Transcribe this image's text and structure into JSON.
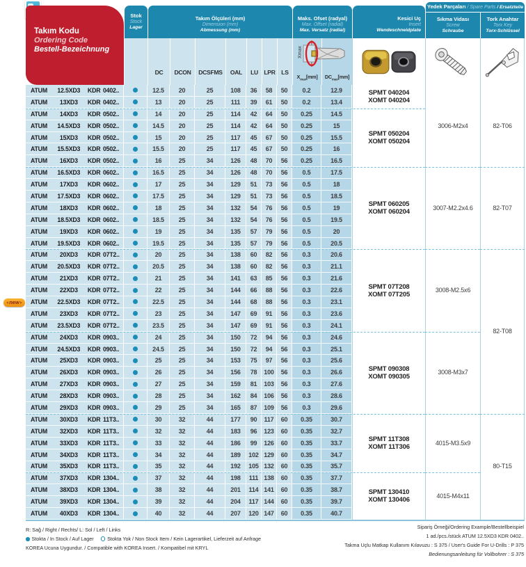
{
  "colors": {
    "teal": "#1e87ae",
    "red": "#be1e2d",
    "row_blue": "#cde4ef",
    "offset_blue": "#b5d7e7",
    "badge_orange": "#ee8f0e",
    "stock_dot": "#1b8db6",
    "group_dash": "#7cc0dc"
  },
  "header": {
    "ordering_code": {
      "tr": "Takım Kodu",
      "en": "Ordering Code",
      "de": "Bestell-Bezeichnung"
    },
    "stock": {
      "tr": "Stok",
      "en": "Stock",
      "de": "Lager"
    },
    "dimensions": {
      "tr": "Takım Ölçüleri (mm)",
      "en": "Dimension (mm)",
      "de": "Abmessung (mm)"
    },
    "offset": {
      "tr": "Maks. Ofset (radyal)",
      "en": "Max. Offset (radial)",
      "de": "Max. Versatz (radial)"
    },
    "insert": {
      "tr": "Kesici Uç",
      "en": "Insert",
      "de": "Wendeschneidplate"
    },
    "spare_parts": {
      "tr": "Yedek Parçaları",
      "sep": " / ",
      "en": "Spare Parts",
      "de": "Ersatzteile"
    },
    "screw": {
      "tr": "Sıkma Vidası",
      "en": "Screw",
      "de": "Schraube"
    },
    "torx": {
      "tr": "Tork Anahtar",
      "en": "Torx Key",
      "de": "Torx-Schlüssel"
    },
    "offset_axis_label": "Xmax",
    "offset_cols": [
      {
        "main": "X",
        "sub": "max",
        "unit": "[mm]"
      },
      {
        "main": "DC",
        "sub": "max",
        "unit": "[mm]"
      }
    ]
  },
  "table": {
    "dim_columns": [
      "DC",
      "DCON",
      "DCSFMS",
      "OAL",
      "LU",
      "LPR",
      "LS"
    ],
    "rows": [
      {
        "code": [
          "ATUM",
          "12.5XD3",
          "KDR",
          "0402.."
        ],
        "stock": "in",
        "dims": [
          "12.5",
          "20",
          "25",
          "108",
          "36",
          "58",
          "50"
        ],
        "xmax": "0.2",
        "dcmax": "12.9"
      },
      {
        "code": [
          "ATUM",
          "13XD3",
          "KDR",
          "0402.."
        ],
        "stock": "in",
        "dims": [
          "13",
          "20",
          "25",
          "111",
          "39",
          "61",
          "50"
        ],
        "xmax": "0.2",
        "dcmax": "13.4"
      },
      {
        "code": [
          "ATUM",
          "14XD3",
          "KDR",
          "0502.."
        ],
        "stock": "in",
        "dims": [
          "14",
          "20",
          "25",
          "114",
          "42",
          "64",
          "50"
        ],
        "xmax": "0.25",
        "dcmax": "14.5"
      },
      {
        "code": [
          "ATUM",
          "14.5XD3",
          "KDR",
          "0502.."
        ],
        "stock": "in",
        "dims": [
          "14.5",
          "20",
          "25",
          "114",
          "42",
          "64",
          "50"
        ],
        "xmax": "0.25",
        "dcmax": "15"
      },
      {
        "code": [
          "ATUM",
          "15XD3",
          "KDR",
          "0502.."
        ],
        "stock": "in",
        "dims": [
          "15",
          "20",
          "25",
          "117",
          "45",
          "67",
          "50"
        ],
        "xmax": "0.25",
        "dcmax": "15.5"
      },
      {
        "code": [
          "ATUM",
          "15.5XD3",
          "KDR",
          "0502.."
        ],
        "stock": "in",
        "dims": [
          "15.5",
          "20",
          "25",
          "117",
          "45",
          "67",
          "50"
        ],
        "xmax": "0.25",
        "dcmax": "16"
      },
      {
        "code": [
          "ATUM",
          "16XD3",
          "KDR",
          "0502.."
        ],
        "stock": "in",
        "dims": [
          "16",
          "25",
          "34",
          "126",
          "48",
          "70",
          "56"
        ],
        "xmax": "0.25",
        "dcmax": "16.5"
      },
      {
        "code": [
          "ATUM",
          "16.5XD3",
          "KDR",
          "0602.."
        ],
        "stock": "in",
        "dims": [
          "16.5",
          "25",
          "34",
          "126",
          "48",
          "70",
          "56"
        ],
        "xmax": "0.5",
        "dcmax": "17.5"
      },
      {
        "code": [
          "ATUM",
          "17XD3",
          "KDR",
          "0602.."
        ],
        "stock": "in",
        "dims": [
          "17",
          "25",
          "34",
          "129",
          "51",
          "73",
          "56"
        ],
        "xmax": "0.5",
        "dcmax": "18"
      },
      {
        "code": [
          "ATUM",
          "17.5XD3",
          "KDR",
          "0602.."
        ],
        "stock": "in",
        "dims": [
          "17.5",
          "25",
          "34",
          "129",
          "51",
          "73",
          "56"
        ],
        "xmax": "0.5",
        "dcmax": "18.5"
      },
      {
        "code": [
          "ATUM",
          "18XD3",
          "KDR",
          "0602.."
        ],
        "stock": "in",
        "dims": [
          "18",
          "25",
          "34",
          "132",
          "54",
          "76",
          "56"
        ],
        "xmax": "0.5",
        "dcmax": "19"
      },
      {
        "code": [
          "ATUM",
          "18.5XD3",
          "KDR",
          "0602.."
        ],
        "stock": "in",
        "dims": [
          "18.5",
          "25",
          "34",
          "132",
          "54",
          "76",
          "56"
        ],
        "xmax": "0.5",
        "dcmax": "19.5"
      },
      {
        "code": [
          "ATUM",
          "19XD3",
          "KDR",
          "0602.."
        ],
        "stock": "in",
        "dims": [
          "19",
          "25",
          "34",
          "135",
          "57",
          "79",
          "56"
        ],
        "xmax": "0.5",
        "dcmax": "20"
      },
      {
        "code": [
          "ATUM",
          "19.5XD3",
          "KDR",
          "0602.."
        ],
        "stock": "in",
        "dims": [
          "19.5",
          "25",
          "34",
          "135",
          "57",
          "79",
          "56"
        ],
        "xmax": "0.5",
        "dcmax": "20.5"
      },
      {
        "code": [
          "ATUM",
          "20XD3",
          "KDR",
          "07T2.."
        ],
        "stock": "in",
        "dims": [
          "20",
          "25",
          "34",
          "138",
          "60",
          "82",
          "56"
        ],
        "xmax": "0.3",
        "dcmax": "20.6"
      },
      {
        "code": [
          "ATUM",
          "20.5XD3",
          "KDR",
          "07T2.."
        ],
        "stock": "in",
        "dims": [
          "20.5",
          "25",
          "34",
          "138",
          "60",
          "82",
          "56"
        ],
        "xmax": "0.3",
        "dcmax": "21.1"
      },
      {
        "code": [
          "ATUM",
          "21XD3",
          "KDR",
          "07T2.."
        ],
        "stock": "in",
        "dims": [
          "21",
          "25",
          "34",
          "141",
          "63",
          "85",
          "56"
        ],
        "xmax": "0.3",
        "dcmax": "21.6"
      },
      {
        "code": [
          "ATUM",
          "22XD3",
          "KDR",
          "07T2.."
        ],
        "stock": "in",
        "dims": [
          "22",
          "25",
          "34",
          "144",
          "66",
          "88",
          "56"
        ],
        "xmax": "0.3",
        "dcmax": "22.6"
      },
      {
        "code": [
          "ATUM",
          "22.5XD3",
          "KDR",
          "07T2.."
        ],
        "stock": "in",
        "dims": [
          "22.5",
          "25",
          "34",
          "144",
          "68",
          "88",
          "56"
        ],
        "xmax": "0.3",
        "dcmax": "23.1"
      },
      {
        "code": [
          "ATUM",
          "23XD3",
          "KDR",
          "07T2.."
        ],
        "stock": "in",
        "dims": [
          "23",
          "25",
          "34",
          "147",
          "69",
          "91",
          "56"
        ],
        "xmax": "0.3",
        "dcmax": "23.6"
      },
      {
        "code": [
          "ATUM",
          "23.5XD3",
          "KDR",
          "07T2.."
        ],
        "stock": "in",
        "dims": [
          "23.5",
          "25",
          "34",
          "147",
          "69",
          "91",
          "56"
        ],
        "xmax": "0.3",
        "dcmax": "24.1"
      },
      {
        "code": [
          "ATUM",
          "24XD3",
          "KDR",
          "0903.."
        ],
        "stock": "in",
        "dims": [
          "24",
          "25",
          "34",
          "150",
          "72",
          "94",
          "56"
        ],
        "xmax": "0.3",
        "dcmax": "24.6"
      },
      {
        "code": [
          "ATUM",
          "24.5XD3",
          "KDR",
          "0903.."
        ],
        "stock": "in",
        "dims": [
          "24.5",
          "25",
          "34",
          "150",
          "72",
          "94",
          "56"
        ],
        "xmax": "0.3",
        "dcmax": "25.1"
      },
      {
        "code": [
          "ATUM",
          "25XD3",
          "KDR",
          "0903.."
        ],
        "stock": "in",
        "dims": [
          "25",
          "25",
          "34",
          "153",
          "75",
          "97",
          "56"
        ],
        "xmax": "0.3",
        "dcmax": "25.6"
      },
      {
        "code": [
          "ATUM",
          "26XD3",
          "KDR",
          "0903.."
        ],
        "stock": "in",
        "dims": [
          "26",
          "25",
          "34",
          "156",
          "78",
          "100",
          "56"
        ],
        "xmax": "0.3",
        "dcmax": "26.6"
      },
      {
        "code": [
          "ATUM",
          "27XD3",
          "KDR",
          "0903.."
        ],
        "stock": "in",
        "dims": [
          "27",
          "25",
          "34",
          "159",
          "81",
          "103",
          "56"
        ],
        "xmax": "0.3",
        "dcmax": "27.6"
      },
      {
        "code": [
          "ATUM",
          "28XD3",
          "KDR",
          "0903.."
        ],
        "stock": "in",
        "dims": [
          "28",
          "25",
          "34",
          "162",
          "84",
          "106",
          "56"
        ],
        "xmax": "0.3",
        "dcmax": "28.6"
      },
      {
        "code": [
          "ATUM",
          "29XD3",
          "KDR",
          "0903.."
        ],
        "stock": "in",
        "dims": [
          "29",
          "25",
          "34",
          "165",
          "87",
          "109",
          "56"
        ],
        "xmax": "0.3",
        "dcmax": "29.6"
      },
      {
        "code": [
          "ATUM",
          "30XD3",
          "KDR",
          "11T3.."
        ],
        "stock": "in",
        "dims": [
          "30",
          "32",
          "44",
          "177",
          "90",
          "117",
          "60"
        ],
        "xmax": "0.35",
        "dcmax": "30.7"
      },
      {
        "code": [
          "ATUM",
          "32XD3",
          "KDR",
          "11T3.."
        ],
        "stock": "in",
        "dims": [
          "32",
          "32",
          "44",
          "183",
          "96",
          "123",
          "60"
        ],
        "xmax": "0.35",
        "dcmax": "32.7"
      },
      {
        "code": [
          "ATUM",
          "33XD3",
          "KDR",
          "11T3.."
        ],
        "stock": "in",
        "dims": [
          "33",
          "32",
          "44",
          "186",
          "99",
          "126",
          "60"
        ],
        "xmax": "0.35",
        "dcmax": "33.7"
      },
      {
        "code": [
          "ATUM",
          "34XD3",
          "KDR",
          "11T3.."
        ],
        "stock": "in",
        "dims": [
          "34",
          "32",
          "44",
          "189",
          "102",
          "129",
          "60"
        ],
        "xmax": "0.35",
        "dcmax": "34.7"
      },
      {
        "code": [
          "ATUM",
          "35XD3",
          "KDR",
          "11T3.."
        ],
        "stock": "in",
        "dims": [
          "35",
          "32",
          "44",
          "192",
          "105",
          "132",
          "60"
        ],
        "xmax": "0.35",
        "dcmax": "35.7"
      },
      {
        "code": [
          "ATUM",
          "37XD3",
          "KDR",
          "1304.."
        ],
        "stock": "in",
        "dims": [
          "37",
          "32",
          "44",
          "198",
          "111",
          "138",
          "60"
        ],
        "xmax": "0.35",
        "dcmax": "37.7"
      },
      {
        "code": [
          "ATUM",
          "38XD3",
          "KDR",
          "1304.."
        ],
        "stock": "in",
        "dims": [
          "38",
          "32",
          "44",
          "201",
          "114",
          "141",
          "60"
        ],
        "xmax": "0.35",
        "dcmax": "38.7"
      },
      {
        "code": [
          "ATUM",
          "39XD3",
          "KDR",
          "1304.."
        ],
        "stock": "in",
        "dims": [
          "39",
          "32",
          "44",
          "204",
          "117",
          "144",
          "60"
        ],
        "xmax": "0.35",
        "dcmax": "39.7"
      },
      {
        "code": [
          "ATUM",
          "40XD3",
          "KDR",
          "1304.."
        ],
        "stock": "in",
        "dims": [
          "40",
          "32",
          "44",
          "207",
          "120",
          "147",
          "60"
        ],
        "xmax": "0.35",
        "dcmax": "40.7"
      }
    ],
    "insert_groups": [
      {
        "start": 0,
        "count": 2,
        "lines": [
          "SPMT 040204",
          "XOMT 040204"
        ]
      },
      {
        "start": 2,
        "count": 5,
        "lines": [
          "SPMT 050204",
          "XOMT 050204"
        ]
      },
      {
        "start": 7,
        "count": 7,
        "lines": [
          "SPMT 060205",
          "XOMT 060204"
        ]
      },
      {
        "start": 14,
        "count": 7,
        "lines": [
          "SPMT 07T208",
          "XOMT 07T205"
        ]
      },
      {
        "start": 21,
        "count": 7,
        "lines": [
          "SPMT 090308",
          "XOMT 090305"
        ]
      },
      {
        "start": 28,
        "count": 5,
        "lines": [
          "SPMT 11T308",
          "XOMT 11T306"
        ]
      },
      {
        "start": 33,
        "count": 4,
        "lines": [
          "SPMT 130410",
          "XOMT 130406"
        ]
      }
    ],
    "screw_groups": [
      {
        "start": 0,
        "count": 7,
        "label": "3006-M2x4"
      },
      {
        "start": 7,
        "count": 7,
        "label": "3007-M2.2x4.6"
      },
      {
        "start": 14,
        "count": 7,
        "label": "3008-M2.5x6"
      },
      {
        "start": 21,
        "count": 7,
        "label": "3008-M3x7"
      },
      {
        "start": 28,
        "count": 5,
        "label": "4015-M3.5x9"
      },
      {
        "start": 33,
        "count": 4,
        "label": "4015-M4x11"
      }
    ],
    "torx_groups": [
      {
        "start": 0,
        "count": 7,
        "label": "82-T06"
      },
      {
        "start": 7,
        "count": 7,
        "label": "82-T07"
      },
      {
        "start": 14,
        "count": 14,
        "label": "82-T08"
      },
      {
        "start": 28,
        "count": 9,
        "label": "80-T15"
      }
    ],
    "new_badge": {
      "label": "new",
      "row_index": 18
    }
  },
  "footer": {
    "rl": "R: Sağ / Right / Rechts/   L: Sol / Left / Links",
    "legend_in_stock": "Stokta / In Stock / Auf Lager",
    "legend_non_stock": "Stokta Yok / Non Stock Item / Kein Lagerartikel, Lieferzeit auf Anfrage",
    "compat": "KOREA Ucuna Uygundur. / Compatible with KOREA Insert. / Kompatibel mit KRYL",
    "ordering_example": "Sipariş Örneği/Ordering Example/Bestellbeispiel",
    "example_line": "1 ad./pcs./stück  ATUM 12.5XD3 KDR 0402..",
    "guide_line": "Takma Uçlu Matkap Kullanım Kılavuzu : S 375 / User's Guide For U-Drills : P 375",
    "guide_line_de": "Bedienungsanleitung für Vollbohrer : S 375"
  }
}
